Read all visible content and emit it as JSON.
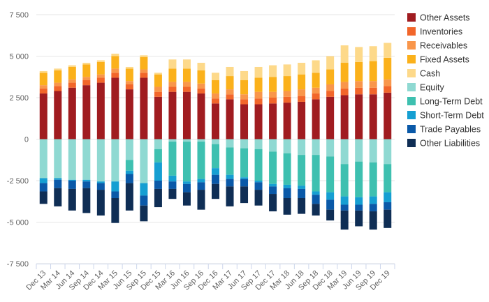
{
  "chart_data": {
    "type": "bar",
    "stacked": true,
    "categories": [
      "Dec 13",
      "Mar 14",
      "Jun 14",
      "Sep 14",
      "Dec 14",
      "Mar 15",
      "Jun 15",
      "Sep 15",
      "Dec 15",
      "Mar 16",
      "Jun 16",
      "Sep 16",
      "Dec 16",
      "Mar 17",
      "Jun 17",
      "Sep 17",
      "Dec 17",
      "Mar 18",
      "Jun 18",
      "Sep 18",
      "Dec 18",
      "Mar 19",
      "Jun 19",
      "Sep 19",
      "Dec 19"
    ],
    "ylim": [
      -7500,
      7500
    ],
    "yticks": [
      -7500,
      -5000,
      -2500,
      0,
      2500,
      5000,
      7500
    ],
    "ytick_labels": [
      "-7 500",
      "-5 000",
      "-2 500",
      "0",
      "2 500",
      "5 000",
      "7 500"
    ],
    "grid": true,
    "legend_position": "right",
    "series": [
      {
        "name": "Other Assets",
        "color": "#a01c20",
        "values": [
          2750,
          2900,
          3100,
          3250,
          3400,
          3700,
          3000,
          3700,
          2550,
          2850,
          2850,
          2750,
          2150,
          2400,
          2100,
          2100,
          2150,
          2200,
          2250,
          2400,
          2550,
          2650,
          2700,
          2700,
          2800
        ]
      },
      {
        "name": "Inventories",
        "color": "#f2662a",
        "values": [
          300,
          300,
          300,
          300,
          300,
          300,
          300,
          300,
          300,
          300,
          300,
          300,
          300,
          300,
          300,
          350,
          350,
          350,
          350,
          350,
          350,
          400,
          400,
          400,
          400
        ]
      },
      {
        "name": "Receivables",
        "color": "#f9964b",
        "values": [
          200,
          200,
          200,
          200,
          200,
          250,
          200,
          200,
          300,
          300,
          300,
          300,
          300,
          300,
          300,
          400,
          350,
          350,
          400,
          350,
          400,
          400,
          400,
          400,
          400
        ]
      },
      {
        "name": "Fixed Assets",
        "color": "#fbb11b",
        "values": [
          750,
          750,
          750,
          750,
          750,
          750,
          750,
          750,
          750,
          800,
          800,
          800,
          800,
          800,
          850,
          850,
          900,
          900,
          900,
          900,
          900,
          1150,
          1150,
          1200,
          1300
        ]
      },
      {
        "name": "Cash",
        "color": "#fdd98a",
        "values": [
          100,
          100,
          100,
          100,
          100,
          150,
          100,
          100,
          100,
          550,
          550,
          450,
          450,
          550,
          550,
          650,
          700,
          700,
          700,
          750,
          800,
          1050,
          900,
          900,
          900
        ]
      },
      {
        "name": "Equity",
        "color": "#8fd9d2",
        "values": [
          -2350,
          -2350,
          -2450,
          -2450,
          -2550,
          -2550,
          -1250,
          -2650,
          -600,
          -150,
          -150,
          -150,
          -300,
          -500,
          -550,
          -600,
          -750,
          -850,
          -950,
          -950,
          -1050,
          -1500,
          -1350,
          -1400,
          -1500
        ]
      },
      {
        "name": "Long-Term Debt",
        "color": "#3ec0b0",
        "values": [
          0,
          0,
          0,
          0,
          0,
          0,
          -650,
          0,
          -800,
          -2050,
          -2400,
          -2250,
          -1450,
          -1650,
          -1750,
          -1900,
          -1950,
          -1900,
          -1850,
          -2200,
          -2150,
          -1950,
          -2150,
          -2050,
          -1700
        ]
      },
      {
        "name": "Short-Term Debt",
        "color": "#159fd2",
        "values": [
          -300,
          -100,
          -50,
          -100,
          -100,
          -600,
          -200,
          -750,
          -1100,
          -350,
          -150,
          -200,
          -400,
          -250,
          -100,
          -100,
          -150,
          -200,
          -200,
          -200,
          -450,
          -500,
          -450,
          -450,
          -600
        ]
      },
      {
        "name": "Trade Payables",
        "color": "#0a59a8",
        "values": [
          -500,
          -500,
          -500,
          -400,
          -400,
          -400,
          -550,
          -600,
          -500,
          -450,
          -500,
          -450,
          -550,
          -450,
          -450,
          -450,
          -450,
          -600,
          -550,
          -550,
          -600,
          -350,
          -350,
          -450,
          -450
        ]
      },
      {
        "name": "Other Liabilities",
        "color": "#0f2e55",
        "values": [
          -750,
          -1100,
          -1300,
          -1500,
          -1550,
          -1500,
          -1650,
          -950,
          -1100,
          -600,
          -800,
          -1200,
          -900,
          -1200,
          -1000,
          -950,
          -1050,
          -1000,
          -950,
          -700,
          -650,
          -1150,
          -950,
          -1100,
          -1100
        ]
      }
    ]
  }
}
